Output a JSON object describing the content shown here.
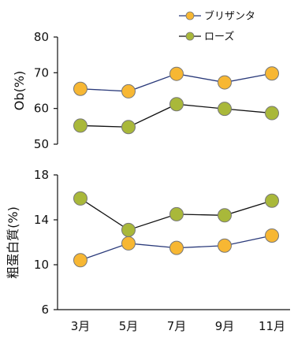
{
  "chart_data": [
    {
      "type": "line",
      "title": "",
      "xlabel": "",
      "ylabel": "Ob(%)",
      "categories": [
        "3月",
        "5月",
        "7月",
        "9月",
        "11月"
      ],
      "ylim": [
        50,
        80
      ],
      "yticks": [
        50,
        60,
        70,
        80
      ],
      "grid": false,
      "legend": "top-right",
      "series": [
        {
          "name": "ブリザンタ",
          "color": "#f7b733",
          "values": [
            65.5,
            64.8,
            69.7,
            67.3,
            69.8
          ]
        },
        {
          "name": "ローズ",
          "color": "#a9b83a",
          "values": [
            55.2,
            54.8,
            61.2,
            59.9,
            58.7
          ]
        }
      ]
    },
    {
      "type": "line",
      "title": "",
      "xlabel": "",
      "ylabel": "粗蛋白質(%)",
      "categories": [
        "3月",
        "5月",
        "7月",
        "9月",
        "11月"
      ],
      "ylim": [
        6,
        18
      ],
      "yticks": [
        6,
        10,
        14,
        18
      ],
      "grid": false,
      "series": [
        {
          "name": "ブリザンタ",
          "color": "#f7b733",
          "values": [
            10.4,
            11.9,
            11.5,
            11.7,
            12.6
          ]
        },
        {
          "name": "ローズ",
          "color": "#a9b83a",
          "values": [
            15.9,
            13.1,
            14.5,
            14.4,
            15.7
          ]
        }
      ]
    }
  ]
}
